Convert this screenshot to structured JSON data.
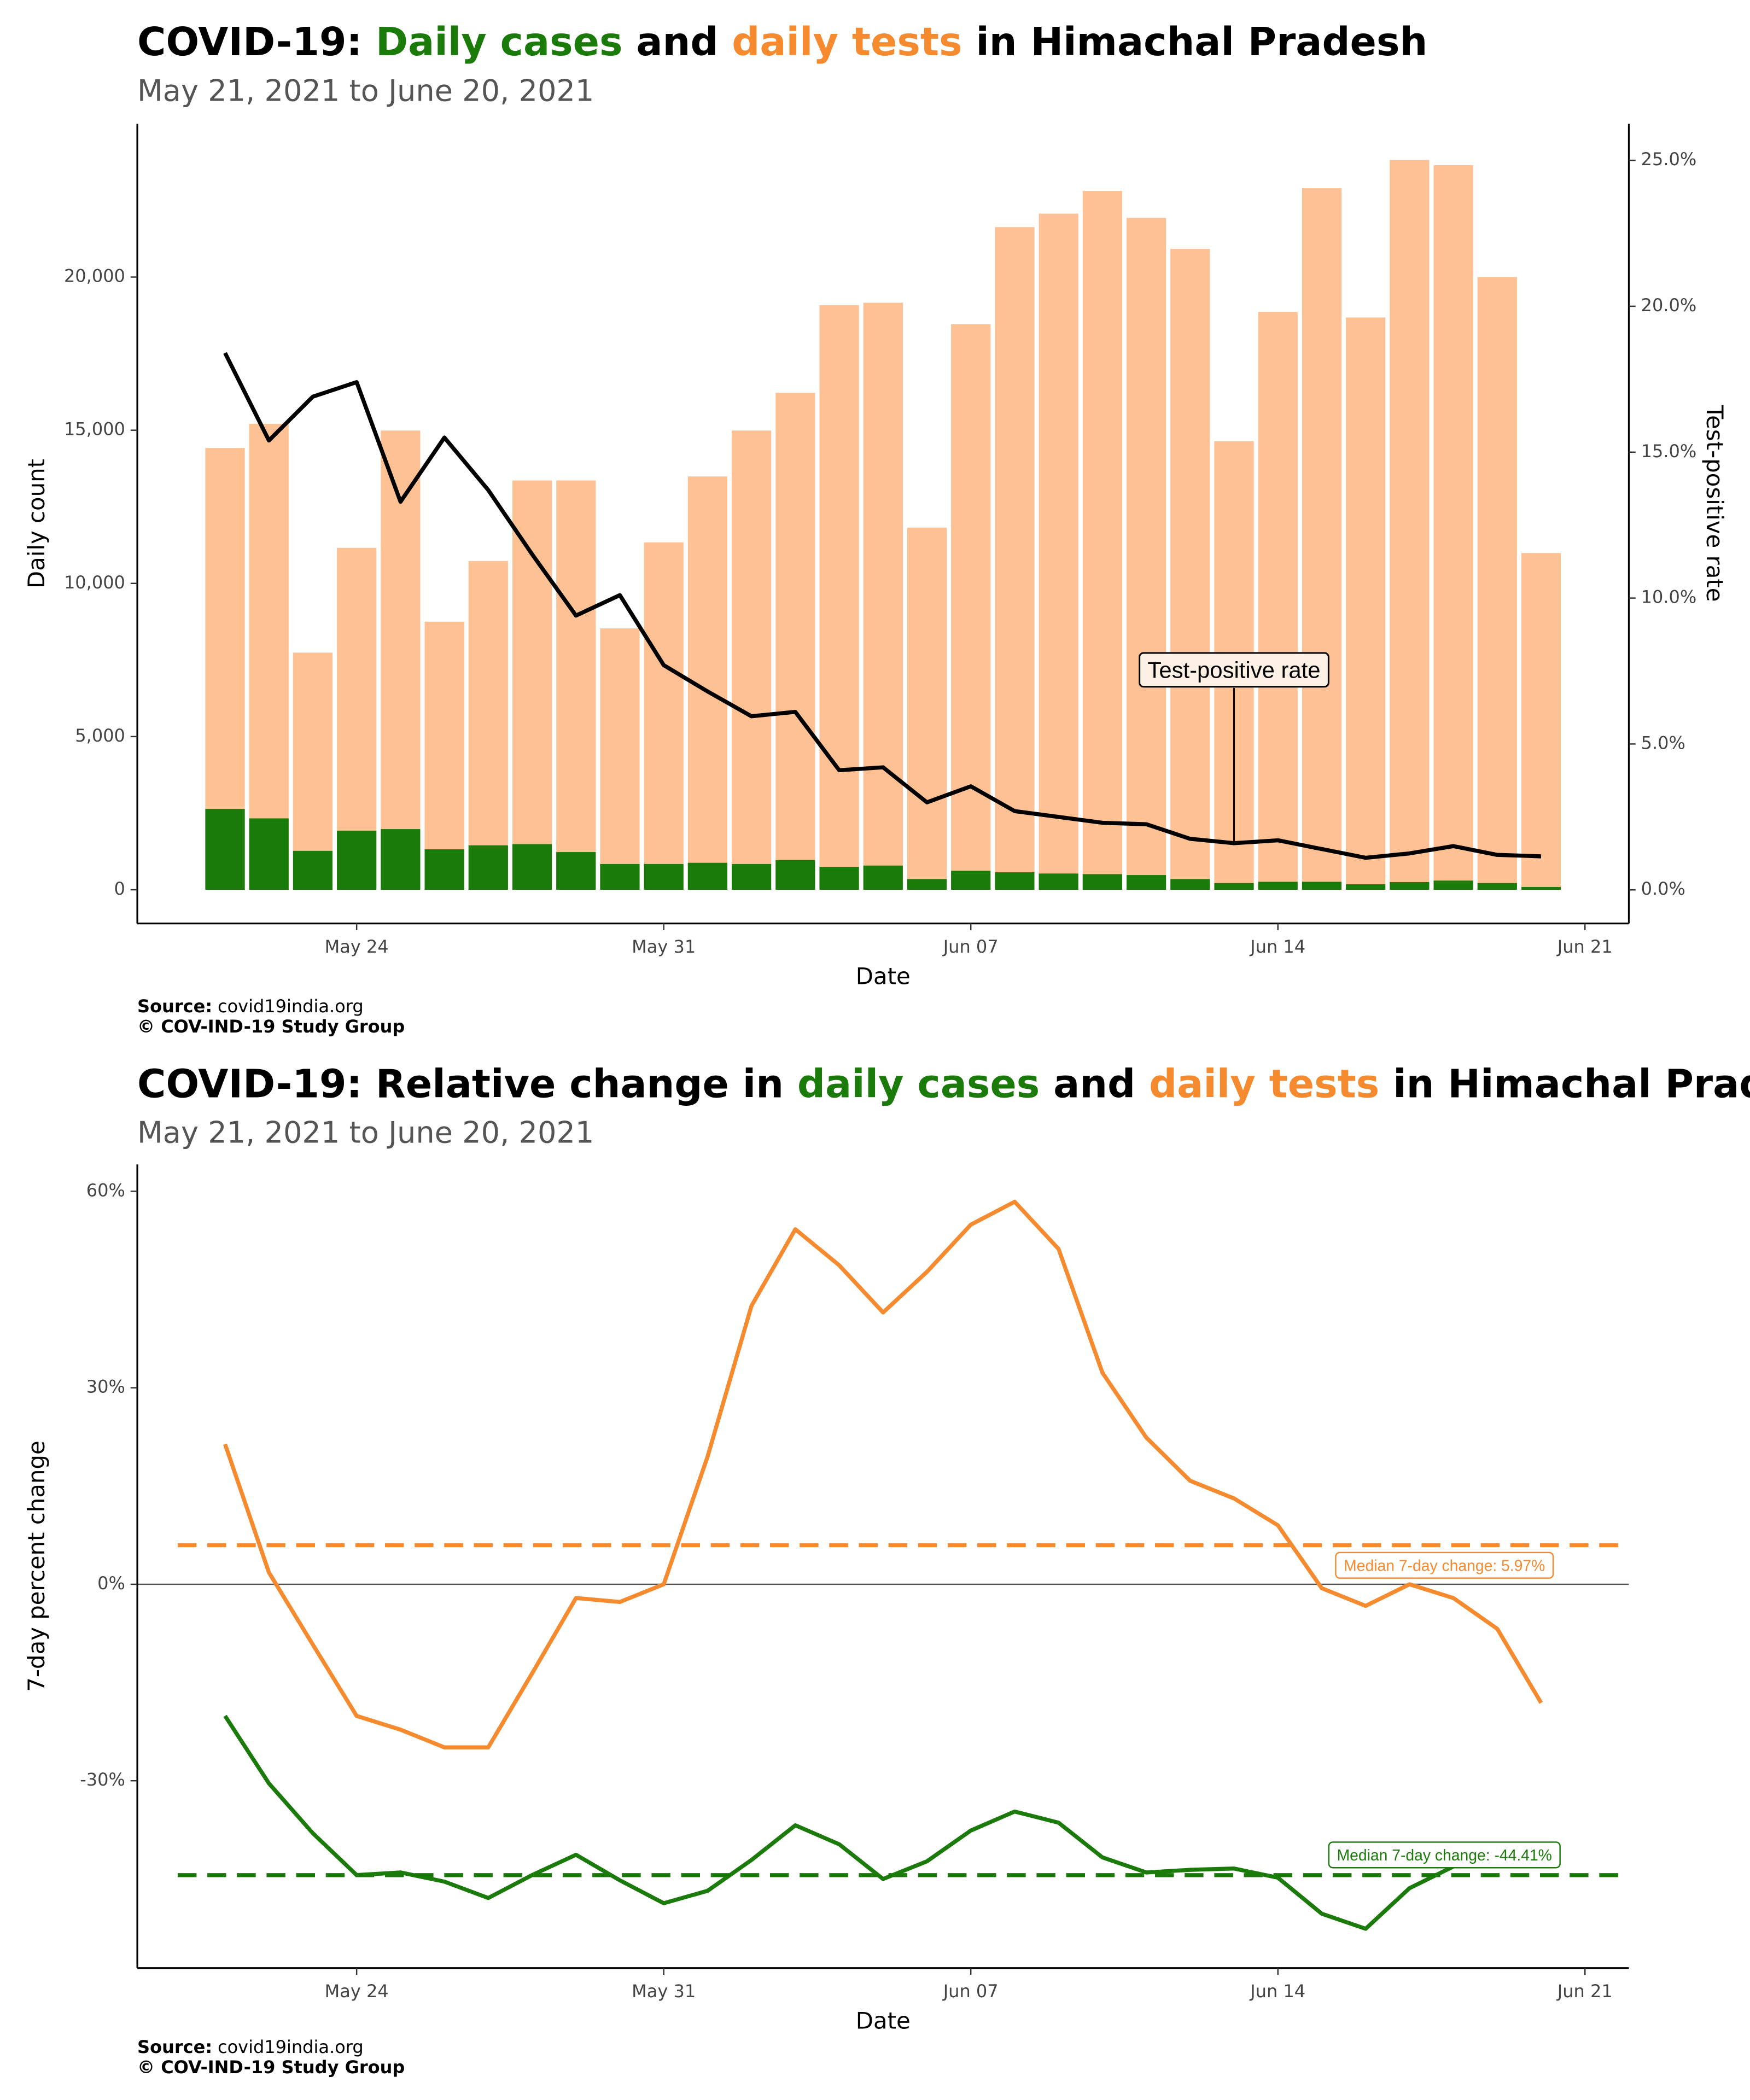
{
  "chart_data": [
    {
      "type": "bar",
      "title_parts": [
        {
          "text": "COVID-19: ",
          "color": "#000000"
        },
        {
          "text": "Daily cases",
          "color": "#1a7a0a"
        },
        {
          "text": " and ",
          "color": "#000000"
        },
        {
          "text": "daily tests",
          "color": "#f58a2e"
        },
        {
          "text": " in Himachal Pradesh",
          "color": "#000000"
        }
      ],
      "subtitle": "May 21, 2021 to June 20, 2021",
      "x_label": "Date",
      "y_label": "Daily count",
      "y2_label": "Test-positive rate",
      "x": [
        "2021-05-21",
        "2021-05-22",
        "2021-05-23",
        "2021-05-24",
        "2021-05-25",
        "2021-05-26",
        "2021-05-27",
        "2021-05-28",
        "2021-05-29",
        "2021-05-30",
        "2021-05-31",
        "2021-06-01",
        "2021-06-02",
        "2021-06-03",
        "2021-06-04",
        "2021-06-05",
        "2021-06-06",
        "2021-06-07",
        "2021-06-08",
        "2021-06-09",
        "2021-06-10",
        "2021-06-11",
        "2021-06-12",
        "2021-06-13",
        "2021-06-14",
        "2021-06-15",
        "2021-06-16",
        "2021-06-17",
        "2021-06-18",
        "2021-06-19",
        "2021-06-20"
      ],
      "series": [
        {
          "mark": "bar",
          "color": "#fdc193",
          "values": [
            14420,
            15210,
            7740,
            11160,
            14990,
            8750,
            10730,
            13360,
            13360,
            8530,
            11340,
            13490,
            14990,
            16220,
            19080,
            19160,
            11820,
            18460,
            21630,
            22070,
            22810,
            21930,
            20920,
            14640,
            18860,
            22900,
            18680,
            23820,
            23650,
            20000,
            10990
          ]
        },
        {
          "mark": "bar",
          "color": "#1a7a0a",
          "values": [
            2640,
            2330,
            1270,
            1930,
            1980,
            1320,
            1450,
            1490,
            1230,
            840,
            840,
            880,
            840,
            970,
            750,
            790,
            350,
            620,
            570,
            530,
            510,
            480,
            350,
            220,
            260,
            260,
            180,
            250,
            300,
            220,
            90
          ]
        },
        {
          "mark": "line",
          "axis": "y2",
          "color": "#000000",
          "values": [
            18.4,
            15.4,
            16.9,
            17.4,
            13.3,
            15.5,
            13.7,
            11.5,
            9.4,
            10.1,
            7.7,
            6.8,
            5.95,
            6.1,
            4.1,
            4.2,
            3.0,
            3.55,
            2.7,
            2.5,
            2.3,
            2.25,
            1.75,
            1.6,
            1.7,
            1.4,
            1.1,
            1.25,
            1.5,
            1.2,
            1.15
          ]
        }
      ],
      "annotation": {
        "text": "Test-positive rate",
        "x": "2021-06-13"
      },
      "xlim": [
        "2021-05-19",
        "2021-06-22"
      ],
      "xticks": [
        {
          "value": "2021-05-24",
          "label": "May 24"
        },
        {
          "value": "2021-05-31",
          "label": "May 31"
        },
        {
          "value": "2021-06-07",
          "label": "Jun 07"
        },
        {
          "value": "2021-06-14",
          "label": "Jun 14"
        },
        {
          "value": "2021-06-21",
          "label": "Jun 21"
        }
      ],
      "ylim": [
        -1100,
        25000
      ],
      "yticks": [
        0,
        {
          "value": 5000,
          "label": "5,000"
        },
        {
          "value": 10000,
          "label": "10,000"
        },
        {
          "value": 15000,
          "label": "15,000"
        },
        {
          "value": 20000,
          "label": "20,000"
        }
      ],
      "y2lim": [
        -1.15,
        26.25
      ],
      "y2ticks": [
        {
          "value": 0,
          "label": "0.0%"
        },
        {
          "value": 5,
          "label": "5.0%"
        },
        {
          "value": 10,
          "label": "10.0%"
        },
        {
          "value": 15,
          "label": "15.0%"
        },
        {
          "value": 20,
          "label": "20.0%"
        },
        {
          "value": 25,
          "label": "25.0%"
        }
      ],
      "grid": false,
      "source_label": "Source:",
      "source": "covid19india.org",
      "credit": "© COV-IND-19 Study Group"
    },
    {
      "type": "line",
      "title_parts": [
        {
          "text": "COVID-19: Relative change in ",
          "color": "#000000"
        },
        {
          "text": "daily cases",
          "color": "#1a7a0a"
        },
        {
          "text": " and ",
          "color": "#000000"
        },
        {
          "text": "daily tests",
          "color": "#f58a2e"
        },
        {
          "text": " in Himachal Pradesh",
          "color": "#000000"
        }
      ],
      "subtitle": "May 21, 2021 to June 20, 2021",
      "x_label": "Date",
      "y_label": "7-day percent change",
      "x": [
        "2021-05-21",
        "2021-05-22",
        "2021-05-23",
        "2021-05-24",
        "2021-05-25",
        "2021-05-26",
        "2021-05-27",
        "2021-05-28",
        "2021-05-29",
        "2021-05-30",
        "2021-05-31",
        "2021-06-01",
        "2021-06-02",
        "2021-06-03",
        "2021-06-04",
        "2021-06-05",
        "2021-06-06",
        "2021-06-07",
        "2021-06-08",
        "2021-06-09",
        "2021-06-10",
        "2021-06-11",
        "2021-06-12",
        "2021-06-13",
        "2021-06-14",
        "2021-06-15",
        "2021-06-16",
        "2021-06-17",
        "2021-06-18",
        "2021-06-19",
        "2021-06-20"
      ],
      "series": [
        {
          "mark": "line",
          "color": "#f58a2e",
          "values": [
            21.4,
            1.8,
            -9.2,
            -20.1,
            -22.2,
            -24.9,
            -24.9,
            -13.6,
            -2.1,
            -2.7,
            0,
            19.5,
            42.5,
            54.2,
            48.7,
            41.5,
            47.7,
            54.9,
            58.4,
            51.2,
            32.3,
            22.4,
            15.8,
            13.1,
            9.0,
            -0.6,
            -3.3,
            0,
            -2.1,
            -6.8,
            -18.1
          ]
        },
        {
          "mark": "line",
          "color": "#1a7a0a",
          "values": [
            -20.1,
            -30.4,
            -38.0,
            -44.4,
            -44.0,
            -45.4,
            -47.9,
            -44.4,
            -41.3,
            -45.2,
            -48.7,
            -46.8,
            -42.1,
            -36.8,
            -39.7,
            -45.0,
            -42.3,
            -37.6,
            -34.7,
            -36.4,
            -41.7,
            -44.0,
            -43.6,
            -43.4,
            -44.8,
            -50.3,
            -52.6,
            -46.4,
            -43.1,
            -41.1,
            -40.1
          ]
        }
      ],
      "reference_lines": [
        {
          "value": 5.97,
          "label": "Median 7-day change: 5.97%",
          "color": "#f58a2e"
        },
        {
          "value": -44.41,
          "label": "Median 7-day change: -44.41%",
          "color": "#1a7a0a"
        }
      ],
      "zero_line": true,
      "xlim": [
        "2021-05-19",
        "2021-06-22"
      ],
      "xticks": [
        {
          "value": "2021-05-24",
          "label": "May 24"
        },
        {
          "value": "2021-05-31",
          "label": "May 31"
        },
        {
          "value": "2021-06-07",
          "label": "Jun 07"
        },
        {
          "value": "2021-06-14",
          "label": "Jun 14"
        },
        {
          "value": "2021-06-21",
          "label": "Jun 21"
        }
      ],
      "ylim": [
        -58.6,
        64.1
      ],
      "yticks": [
        {
          "value": -30,
          "label": "-30%"
        },
        {
          "value": 0,
          "label": "0%"
        },
        {
          "value": 30,
          "label": "30%"
        },
        {
          "value": 60,
          "label": "60%"
        }
      ],
      "grid": false,
      "source_label": "Source:",
      "source": "covid19india.org",
      "credit": "© COV-IND-19 Study Group"
    }
  ]
}
